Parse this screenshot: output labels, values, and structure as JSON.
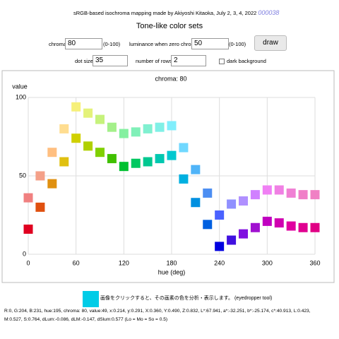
{
  "header": {
    "credit": "sRGB-based isochroma mapping made by Akiyoshi Kitaoka, July 2, 3, 4, 2022",
    "link": "000038",
    "title": "Tone-like color sets"
  },
  "controls": {
    "chroma_label": "chroma",
    "chroma": "80",
    "chroma_range": "(0-100)",
    "lum_label": "luminance when zero chroma",
    "lum": "50",
    "lum_range": "(0-100)",
    "draw": "draw",
    "dot_label": "dot size",
    "dot": "35",
    "rows_label": "number of rows",
    "rows": "2",
    "dark_label": "dark background"
  },
  "chart_data": {
    "type": "scatter",
    "title": "chroma: 80",
    "y_label": "value",
    "x_label": "hue (deg)",
    "x": [
      0,
      15,
      30,
      45,
      60,
      75,
      90,
      105,
      120,
      135,
      150,
      165,
      180,
      195,
      210,
      225,
      240,
      255,
      270,
      285,
      300,
      315,
      330,
      345,
      360
    ],
    "xlim": [
      0,
      360
    ],
    "xticks": [
      0,
      60,
      120,
      180,
      240,
      300,
      360
    ],
    "ylim": [
      0,
      100
    ],
    "yticks": [
      0,
      50,
      100
    ],
    "grid": true,
    "series": [
      {
        "values": [
          36,
          50,
          65,
          80,
          94,
          90,
          86,
          81,
          77,
          78,
          80,
          81,
          82,
          68,
          54,
          39,
          25,
          32,
          34,
          38,
          41,
          41,
          39,
          38,
          38
        ],
        "colors": [
          "#f08080",
          "#f4a088",
          "#ffbf80",
          "#ffdd90",
          "#f6f07a",
          "#e4f27a",
          "#c6f27c",
          "#a4f08a",
          "#84f0a0",
          "#80f0b8",
          "#80f0d0",
          "#80f0e6",
          "#80eefc",
          "#70d8ff",
          "#50b4f8",
          "#4c8ef2",
          "#4a62ff",
          "#9090ff",
          "#b090ff",
          "#d080ff",
          "#f080f4",
          "#f080e4",
          "#f080d4",
          "#f080c8",
          "#f080c4"
        ]
      },
      {
        "values": [
          16,
          30,
          45,
          59,
          74,
          69,
          65,
          61,
          56,
          58,
          59,
          61,
          63,
          48,
          33,
          19,
          5,
          9,
          13,
          17,
          21,
          20,
          18,
          17,
          17
        ],
        "colors": [
          "#e00020",
          "#e05010",
          "#e09010",
          "#e0c010",
          "#d0d000",
          "#b0d000",
          "#80d000",
          "#40c000",
          "#00c030",
          "#00c860",
          "#00c890",
          "#00c8b0",
          "#00c8d0",
          "#00b0e0",
          "#0090e0",
          "#0060e0",
          "#0000e0",
          "#4010e0",
          "#8010e0",
          "#a010d0",
          "#c000c0",
          "#d000b0",
          "#e000a0",
          "#e00090",
          "#e00084"
        ]
      }
    ]
  },
  "footer": {
    "swatch_color": "#00cce7",
    "hint": "画像をクリックすると、その画素の色を分析・表示します。 (eyedropper tool)",
    "info_1": "R:0, G:204, B:231, hue:195, chroma: 80, value:49, x:0.214, y:0.291, X:0.360, Y:0.490, Z:0.832, L*:67.941, a*:-32.251, b*:-25.174, c*:40.913, L:0.423,",
    "info_2": "M:0.527, S:0.764, dLum:-0.086, dLM:-0.147, dSlum:0.577 (Lo = Mo = So = 0.5)"
  }
}
